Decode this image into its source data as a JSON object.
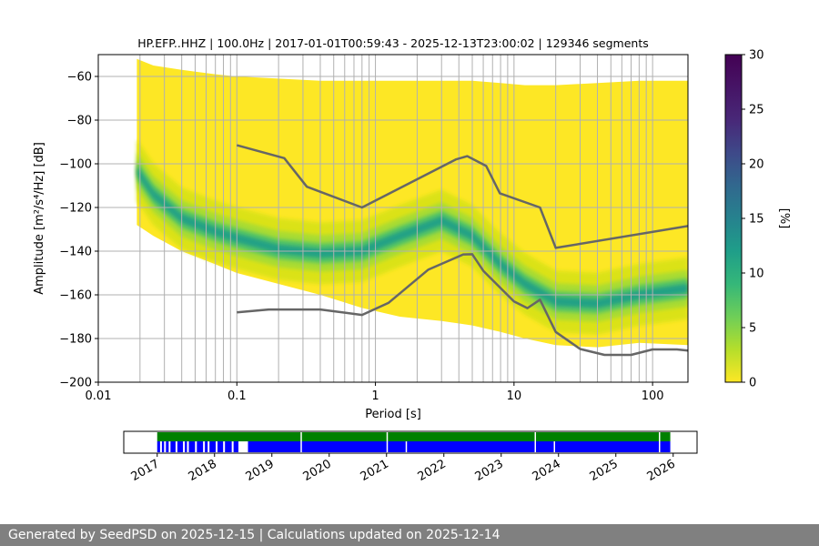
{
  "chart_data": [
    {
      "type": "heatmap",
      "title": "HP.EFP..HHZ | 100.0Hz | 2017-01-01T00:59:43 - 2025-12-13T23:00:02 | 129346 segments",
      "xlabel": "Period [s]",
      "ylabel": "Amplitude [m²/s⁴/Hz] [dB]",
      "x_scale": "log",
      "xlim": [
        0.01,
        180
      ],
      "ylim": [
        -200,
        -50
      ],
      "x_ticks": [
        {
          "value": 0.01,
          "label": "0.01"
        },
        {
          "value": 0.1,
          "label": "0.1"
        },
        {
          "value": 1,
          "label": "1"
        },
        {
          "value": 10,
          "label": "10"
        },
        {
          "value": 100,
          "label": "100"
        }
      ],
      "y_ticks": [
        {
          "value": -60,
          "label": "−60"
        },
        {
          "value": -80,
          "label": "−80"
        },
        {
          "value": -100,
          "label": "−100"
        },
        {
          "value": -120,
          "label": "−120"
        },
        {
          "value": -140,
          "label": "−140"
        },
        {
          "value": -160,
          "label": "−160"
        },
        {
          "value": -180,
          "label": "−180"
        },
        {
          "value": -200,
          "label": "−200"
        }
      ],
      "grid": true,
      "colormap": "viridis_r",
      "colorbar": {
        "label": "[%]",
        "range": [
          0,
          30
        ],
        "ticks": [
          {
            "value": 0,
            "label": "0"
          },
          {
            "value": 5,
            "label": "5"
          },
          {
            "value": 10,
            "label": "10"
          },
          {
            "value": 15,
            "label": "15"
          },
          {
            "value": 20,
            "label": "20"
          },
          {
            "value": 25,
            "label": "25"
          },
          {
            "value": 30,
            "label": "30"
          }
        ]
      },
      "heatmap_envelope": {
        "x": [
          0.019,
          0.025,
          0.04,
          0.07,
          0.1,
          0.2,
          0.4,
          0.8,
          1.5,
          3,
          5,
          8,
          12,
          20,
          40,
          80,
          180
        ],
        "upper": [
          -52,
          -55,
          -57,
          -59,
          -60,
          -61,
          -62,
          -62,
          -62,
          -62,
          -62,
          -63,
          -64,
          -64,
          -63,
          -62,
          -62
        ],
        "lower": [
          -128,
          -133,
          -140,
          -146,
          -150,
          -155,
          -160,
          -166,
          -170,
          -172,
          -174,
          -177,
          -180,
          -183,
          -184,
          -182,
          -183
        ],
        "mode": [
          -103,
          -114,
          -125,
          -131,
          -134,
          -139,
          -141,
          -140,
          -133,
          -126,
          -133,
          -146,
          -155,
          -163,
          -164,
          -160,
          -157
        ]
      },
      "series": [
        {
          "name": "",
          "color": "#666666",
          "x": [
            0.1,
            0.22,
            0.32,
            0.8,
            3.8,
            4.6,
            6.3,
            7.9,
            15.4,
            20,
            180
          ],
          "y": [
            -91.5,
            -97.4,
            -110.5,
            -120.0,
            -98.0,
            -96.5,
            -101.0,
            -113.5,
            -120.0,
            -138.5,
            -128.5
          ]
        },
        {
          "name": "",
          "color": "#666666",
          "x": [
            0.1,
            0.17,
            0.4,
            0.8,
            1.24,
            2.4,
            4.3,
            5.0,
            6.0,
            10,
            12.5,
            15.4,
            20,
            30,
            45,
            70,
            100,
            150,
            180
          ],
          "y": [
            -168.0,
            -166.7,
            -166.7,
            -169.2,
            -163.7,
            -148.5,
            -141.5,
            -141.4,
            -149.0,
            -163.0,
            -166.1,
            -162.2,
            -177.0,
            -184.8,
            -187.5,
            -187.5,
            -185.0,
            -185.0,
            -185.5
          ]
        }
      ]
    },
    {
      "type": "timeline",
      "x_ticks": [
        "2017",
        "2018",
        "2019",
        "2020",
        "2021",
        "2022",
        "2023",
        "2024",
        "2025",
        "2026"
      ],
      "x_range": [
        "2016-06",
        "2026-06"
      ],
      "tracks": [
        {
          "color": "#008000",
          "coverage": [
            [
              "2017-01",
              "2025-12-13"
            ]
          ],
          "gaps": [
            "2019-07",
            "2021-01",
            "2023-08",
            "2025-10"
          ]
        },
        {
          "color": "#0000ff",
          "coverage": [
            [
              "2017-01",
              "2018-06"
            ],
            [
              "2018-08",
              "2025-12-13"
            ]
          ],
          "gaps": [
            "2019-07",
            "2021-01",
            "2021-05",
            "2023-08",
            "2023-12",
            "2025-10"
          ]
        }
      ]
    }
  ],
  "footer": {
    "text": "Generated by SeedPSD on 2025-12-15 | Calculations updated on 2025-12-14",
    "background": "#808080"
  }
}
